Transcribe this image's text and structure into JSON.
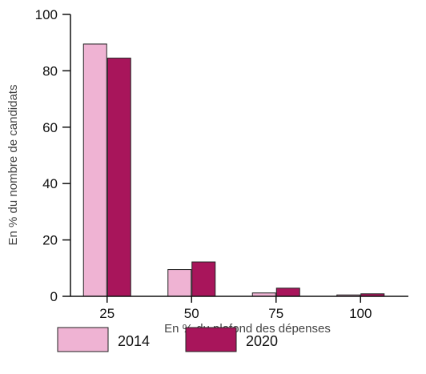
{
  "chart_data": {
    "type": "bar",
    "title": "",
    "xlabel": "En % du plafond des dépenses",
    "ylabel": "En % du nombre de candidats",
    "categories": [
      "25",
      "50",
      "75",
      "100"
    ],
    "ylim": [
      0,
      100
    ],
    "yticks": [
      "0",
      "20",
      "40",
      "60",
      "80",
      "100"
    ],
    "legend_position": "bottom-left",
    "grid": false,
    "series": [
      {
        "name": "2014",
        "color": "#efb3d3",
        "values": [
          89.5,
          9.5,
          1.2,
          0.5
        ]
      },
      {
        "name": "2020",
        "color": "#a8155b",
        "values": [
          84.5,
          12.2,
          2.9,
          0.9
        ]
      }
    ]
  }
}
